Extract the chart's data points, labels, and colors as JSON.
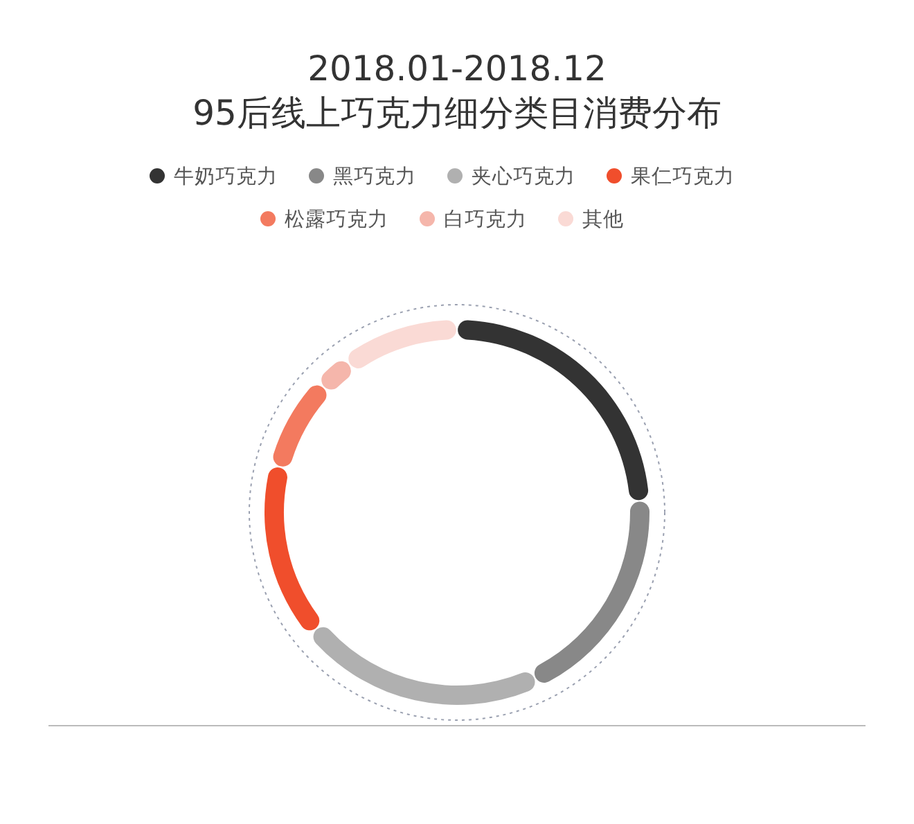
{
  "chart_data": {
    "type": "donut",
    "title": "2018.01-2018.12\n95后线上巧克力细分类目消费分布",
    "categories": [
      "牛奶巧克力",
      "黑巧克力",
      "夹心巧克力",
      "果仁巧克力",
      "松露巧克力",
      "白巧克力",
      "其他"
    ],
    "values": [
      24,
      19,
      21,
      15,
      8,
      3,
      10
    ],
    "colors": [
      "#333333",
      "#888888",
      "#b0b0b0",
      "#f04e2c",
      "#f37a5f",
      "#f5b6ab",
      "#fadad5"
    ],
    "legend": "top"
  }
}
